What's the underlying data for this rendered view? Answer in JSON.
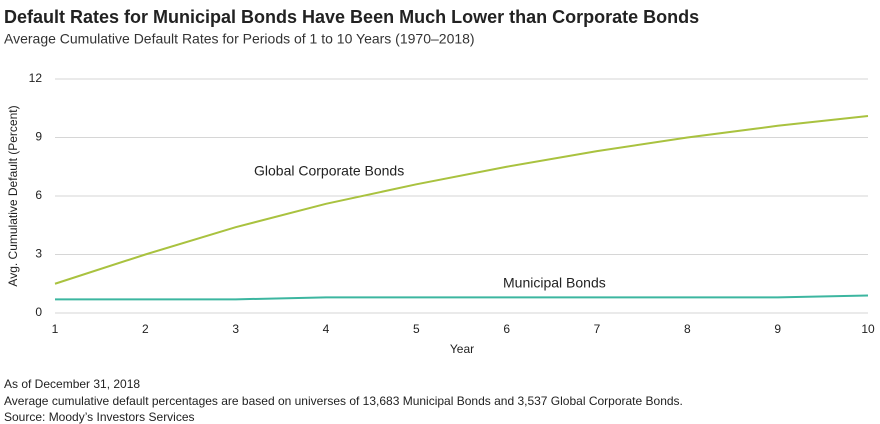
{
  "chart_data": {
    "type": "line",
    "title": "Default Rates for Municipal Bonds Have Been Much Lower than Corporate Bonds",
    "subtitle": "Average Cumulative Default Rates for Periods of 1 to 10 Years (1970–2018)",
    "x_label": "Year",
    "y_label": "Avg. Cumulative Default (Percent)",
    "x": [
      1,
      2,
      3,
      4,
      5,
      6,
      7,
      8,
      9,
      10
    ],
    "series": [
      {
        "name": "Global Corporate Bonds",
        "color": "#a9c23f",
        "values": [
          1.5,
          3.0,
          4.4,
          5.6,
          6.6,
          7.5,
          8.3,
          9.0,
          9.6,
          10.1
        ]
      },
      {
        "name": "Municipal Bonds",
        "color": "#3cb6a0",
        "values": [
          0.7,
          0.7,
          0.7,
          0.8,
          0.8,
          0.8,
          0.8,
          0.8,
          0.8,
          0.9
        ]
      }
    ],
    "xlim": [
      1,
      10
    ],
    "xticks": [
      1,
      2,
      3,
      4,
      5,
      6,
      7,
      8,
      9,
      10
    ],
    "ylim": [
      0,
      12
    ],
    "yticks": [
      0,
      3,
      6,
      9,
      12
    ],
    "grid": true,
    "notes": [
      "As of December 31, 2018",
      "Average cumulative default percentages are based on universes of 13,683 Municipal Bonds and 3,537 Global Corporate Bonds.",
      "Source: Moody’s Investors Services"
    ]
  }
}
